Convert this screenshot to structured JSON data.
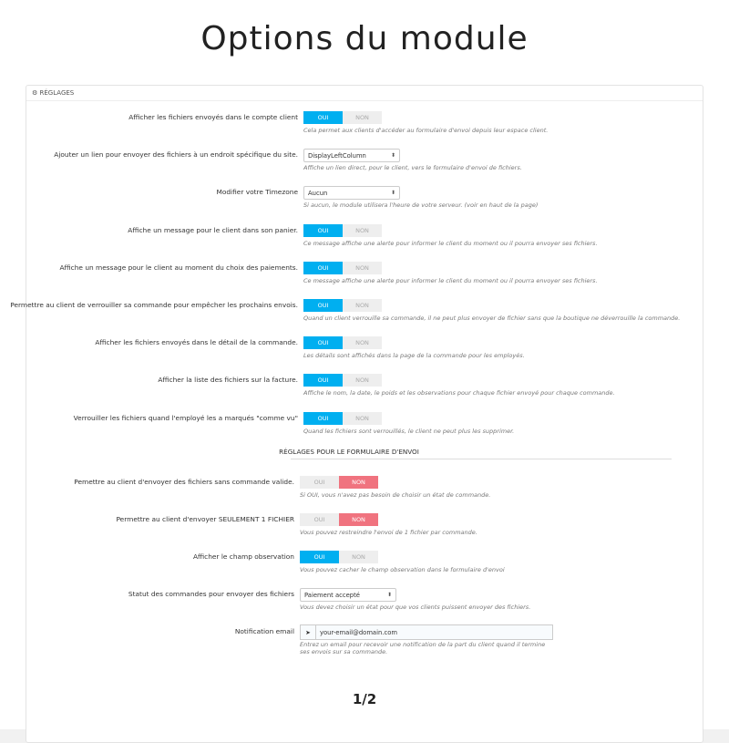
{
  "title": "Options du module",
  "panel": {
    "heading": "RÉGLAGES",
    "rows": [
      {
        "label": "Afficher les fichiers envoyés dans le compte client",
        "control": "switch",
        "on": "OUI",
        "off": "NON",
        "selected": "on",
        "help": "Cela permet aux clients d'accéder au formulaire d'envoi depuis leur espace client."
      },
      {
        "label": "Ajouter un lien pour envoyer des fichiers à un endroit spécifique du site.",
        "control": "select",
        "value": "DisplayLeftColumn",
        "help": "Affiche un lien direct, pour le client, vers le formulaire d'envoi de fichiers."
      },
      {
        "label": "Modifier votre Timezone",
        "control": "select",
        "value": "Aucun",
        "help": "Si aucun, le module utilisera l'heure de votre serveur. (voir en haut de la page)"
      },
      {
        "label": "Affiche un message pour le client dans son panier.",
        "control": "switch",
        "on": "OUI",
        "off": "NON",
        "selected": "on",
        "help": "Ce message affiche une alerte pour informer le client du moment ou il pourra envoyer ses fichiers."
      },
      {
        "label": "Affiche un message pour le client au moment du choix des paiements.",
        "control": "switch",
        "on": "OUI",
        "off": "NON",
        "selected": "on",
        "help": "Ce message affiche une alerte pour informer le client du moment ou il pourra envoyer ses fichiers."
      },
      {
        "label": "Permettre au client de verrouiller sa commande pour empêcher les prochains envois.",
        "control": "switch",
        "on": "OUI",
        "off": "NON",
        "selected": "on",
        "help": "Quand un client verrouille sa commande, il ne peut plus envoyer de fichier sans que la boutique ne déverrouille la commande."
      },
      {
        "label": "Afficher les fichiers envoyés dans le détail de la commande.",
        "control": "switch",
        "on": "OUI",
        "off": "NON",
        "selected": "on",
        "help": "Les détails sont affichés dans la page de la commande pour les employés."
      },
      {
        "label": "Afficher la liste des fichiers sur la facture.",
        "control": "switch",
        "on": "OUI",
        "off": "NON",
        "selected": "on",
        "help": "Affiche le nom, la date, le poids et les observations pour chaque fichier envoyé pour chaque commande."
      },
      {
        "label": "Verrouiller les fichiers quand l'employé les a marqués \"comme vu\"",
        "control": "switch",
        "on": "OUI",
        "off": "NON",
        "selected": "on",
        "help": "Quand les fichiers sont verrouillés, le client ne peut plus les supprimer."
      }
    ]
  },
  "section": {
    "heading": "RÉGLAGES POUR LE FORMULAIRE D'ENVOI",
    "rows": [
      {
        "label": "Pemettre au client d'envoyer des fichiers sans commande valide.",
        "control": "switch",
        "on": "OUI",
        "off": "NON",
        "selected": "off",
        "help": "Si OUI, vous n'avez pas besoin de choisir un état de commande."
      },
      {
        "label": "Permettre au client d'envoyer SEULEMENT 1 FICHIER",
        "control": "switch",
        "on": "OUI",
        "off": "NON",
        "selected": "off",
        "help": "Vous pouvez restreindre l'envoi de 1 fichier par commande."
      },
      {
        "label": "Afficher le champ observation",
        "control": "switch",
        "on": "OUI",
        "off": "NON",
        "selected": "on",
        "help": "Vous pouvez cacher le champ observation dans le formulaire d'envoi"
      },
      {
        "label": "Statut des commandes pour envoyer des fichiers",
        "control": "select",
        "value": "Paiement accepté",
        "help": "Vous devez choisir un état pour que vos clients puissent envoyer des fichiers."
      },
      {
        "label": "Notification email",
        "control": "email",
        "value": "your-email@domain.com",
        "help": "Entrez un email pour recevoir une notification de la part du client quand il termine ses envois sur sa commande."
      }
    ]
  },
  "page": "1/2"
}
